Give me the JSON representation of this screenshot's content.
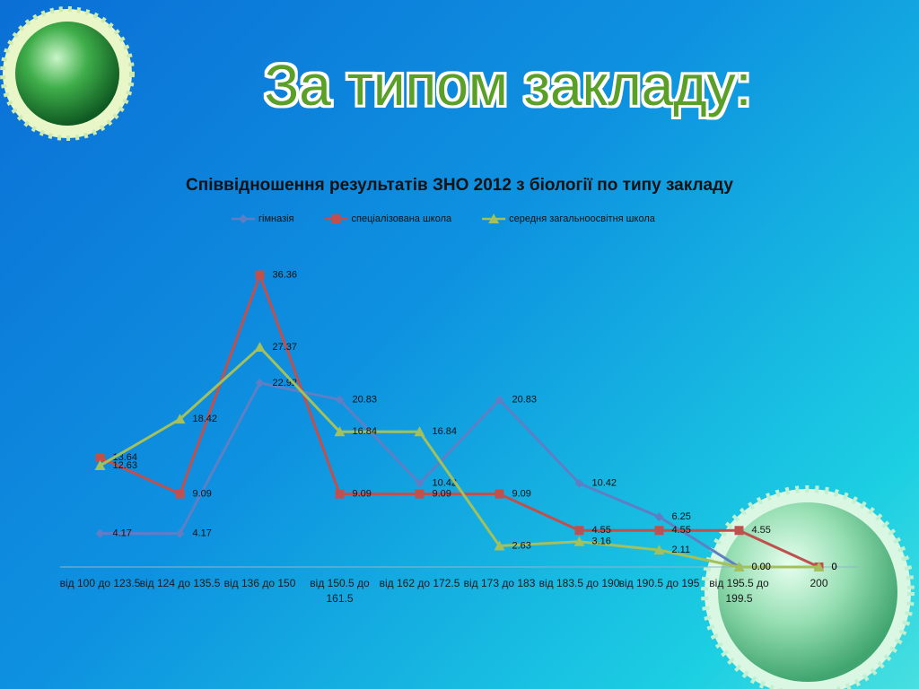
{
  "slide_title": "За типом закладу:",
  "chart_data": {
    "type": "line",
    "title": "Співвідношення результатів ЗНО 2012 з біології по типу закладу",
    "categories": [
      "від 100 до 123.5",
      "від 124 до 135.5",
      "від 136 до 150",
      "від 150.5 до 161.5",
      "від 162 до 172.5",
      "від 173 до 183",
      "від 183.5 до 190",
      "від 190.5 до 195",
      "від 195.5 до 199.5",
      "200"
    ],
    "series": [
      {
        "name": "гімназія",
        "color": "#5f7fc4",
        "marker": "diamond",
        "values": [
          4.17,
          4.17,
          22.92,
          20.83,
          10.42,
          20.83,
          10.42,
          6.25,
          0,
          0
        ],
        "value_labels": [
          "4.17",
          "4.17",
          "22.92",
          "20.83",
          "10.42",
          "20.83",
          "10.42",
          "6.25",
          "0.00",
          "0"
        ]
      },
      {
        "name": "спеціалізована школа",
        "color": "#c0504d",
        "marker": "square",
        "values": [
          13.64,
          9.09,
          36.36,
          9.09,
          9.09,
          9.09,
          4.55,
          4.55,
          4.55,
          0
        ],
        "value_labels": [
          "13.64",
          "9.09",
          "36.36",
          "9.09",
          "9.09",
          "9.09",
          "4.55",
          "4.55",
          "4.55",
          "0"
        ]
      },
      {
        "name": "середня загальноосвітня школа",
        "color": "#a4c05c",
        "marker": "triangle",
        "values": [
          12.63,
          18.42,
          27.37,
          16.84,
          16.84,
          2.63,
          3.16,
          2.11,
          0,
          0
        ],
        "value_labels": [
          "12.63",
          "18.42",
          "27.37",
          "16.84",
          "16.84",
          "2.63",
          "3.16",
          "2.11",
          "0.00",
          "0"
        ]
      }
    ],
    "ylim": [
      0,
      40
    ],
    "grid": false,
    "legend": "top"
  }
}
